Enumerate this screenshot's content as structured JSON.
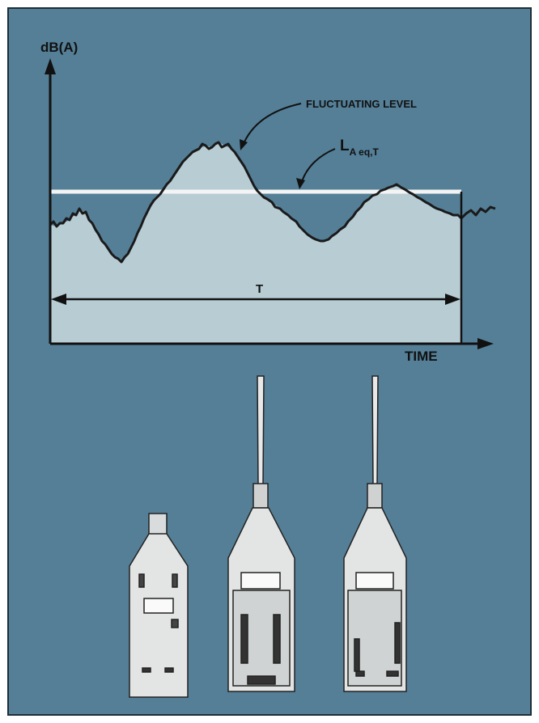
{
  "diagram": {
    "y_axis_label": "dB(A)",
    "x_axis_label": "TIME",
    "curve_label": "FLUCTUATING LEVEL",
    "leq_label": {
      "main": "L",
      "subscript": "A eq,T"
    },
    "period_label": "T"
  }
}
